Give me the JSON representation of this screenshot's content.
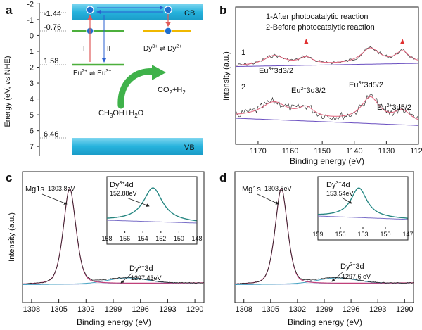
{
  "panels": {
    "a": {
      "letter": "a",
      "ylabel": "Energy  (eV, vs NHE)",
      "levels": [
        {
          "label": "-1.44",
          "energy": -1.44
        },
        {
          "label": "-0.76",
          "energy": -0.76
        },
        {
          "label": "1.58",
          "energy": 1.58
        },
        {
          "label": "6.46",
          "energy": 6.46
        }
      ],
      "ticks": [
        "-2",
        "-1",
        "0",
        "1",
        "2",
        "3",
        "4",
        "5",
        "6",
        "7"
      ],
      "cb_label": "CB",
      "vb_label": "VB",
      "eu_label": "Eu",
      "eu_sup2": "2+",
      "eu_sup3": "3+",
      "dy_label": "Dy",
      "dy_sup3": "3+",
      "dy_sup2": "2+",
      "arrow_i": "I",
      "arrow_ii": "II",
      "reactant": "CH",
      "reactant_sub3": "3",
      "reactant_mid": "OH+H",
      "reactant_sub2": "2",
      "reactant_end": "O",
      "product": "CO",
      "product_sub2": "2",
      "product_mid": "+H",
      "product_sub2b": "2",
      "colors": {
        "cb": "#29b6e0",
        "vb": "#29b6e0",
        "eu_level": "#4caf3c",
        "dy_level": "#f0b800",
        "electron": "#1e6fd0",
        "red_arrow": "#e05a5a",
        "green_arrow": "#3fb24a"
      }
    },
    "b": {
      "letter": "b",
      "legend1": "1-After photocatalytic reaction",
      "legend2": "2-Before photocatalytic reaction",
      "curve1_label": "1",
      "curve2_label": "2",
      "peak_labels": [
        {
          "pre": "Eu",
          "sup": "3+",
          "post": "3d3/2"
        },
        {
          "pre": "Eu",
          "sup": "2+",
          "post": "3d3/2"
        },
        {
          "pre": "Eu",
          "sup": "3+",
          "post": "3d5/2"
        },
        {
          "pre": "Eu",
          "sup": "2+",
          "post": "3d5/2"
        }
      ],
      "xlabel": "Binding energy (eV)",
      "ylabel": "Intensity (a.u.)",
      "xticks": [
        "1170",
        "1160",
        "1150",
        "1140",
        "1130",
        "1120"
      ]
    },
    "c": {
      "letter": "c",
      "mg_label": "Mg1s",
      "mg_value": "1303.8eV",
      "dy3d_pre": "Dy",
      "dy3d_sup": "3+",
      "dy3d_post": "3d",
      "dy3d_value": "1297.43eV",
      "inset_pre": "Dy",
      "inset_sup": "3+",
      "inset_post": "4d",
      "inset_value": "152.88eV",
      "inset_xticks": [
        "158",
        "156",
        "154",
        "152",
        "150",
        "148"
      ],
      "xticks": [
        "1308",
        "1305",
        "1302",
        "1299",
        "1296",
        "1293",
        "1290"
      ],
      "xlabel": "Binding energy (eV)",
      "ylabel": "Intensity (a.u.)"
    },
    "d": {
      "letter": "d",
      "mg_label": "Mg1s",
      "mg_value": "1303.8eV",
      "dy3d_pre": "Dy",
      "dy3d_sup": "3+",
      "dy3d_post": "3d",
      "dy3d_value": "1297.6 eV",
      "inset_pre": "Dy",
      "inset_sup": "3+",
      "inset_post": "4d",
      "inset_value": "153.54eV",
      "inset_xticks": [
        "159",
        "156",
        "153",
        "150",
        "147"
      ],
      "xticks": [
        "1308",
        "1305",
        "1302",
        "1299",
        "1296",
        "1293",
        "1290"
      ],
      "xlabel": "Binding energy (eV)"
    }
  },
  "chart_data": [
    {
      "type": "diagram",
      "panel": "a",
      "ylim": [
        -2.3,
        7.4
      ],
      "levels_eV": [
        -1.44,
        -0.76,
        1.58,
        6.46
      ]
    },
    {
      "type": "line",
      "panel": "b",
      "xlim": [
        1177,
        1120
      ],
      "series": [
        {
          "name": "1-After photocatalytic reaction",
          "peaks": [
            1165,
            1155,
            1135,
            1125
          ]
        },
        {
          "name": "2-Before photocatalytic reaction",
          "peaks": [
            1165,
            1155,
            1135,
            1125
          ]
        }
      ]
    },
    {
      "type": "line",
      "panel": "c",
      "xlim": [
        1309,
        1289
      ],
      "peaks": [
        1303.8,
        1297.43
      ],
      "inset": {
        "xlim": [
          158,
          148
        ],
        "peak": 152.88
      }
    },
    {
      "type": "line",
      "panel": "d",
      "xlim": [
        1309,
        1289
      ],
      "peaks": [
        1303.8,
        1297.6
      ],
      "inset": {
        "xlim": [
          159,
          147
        ],
        "peak": 153.54
      }
    }
  ]
}
